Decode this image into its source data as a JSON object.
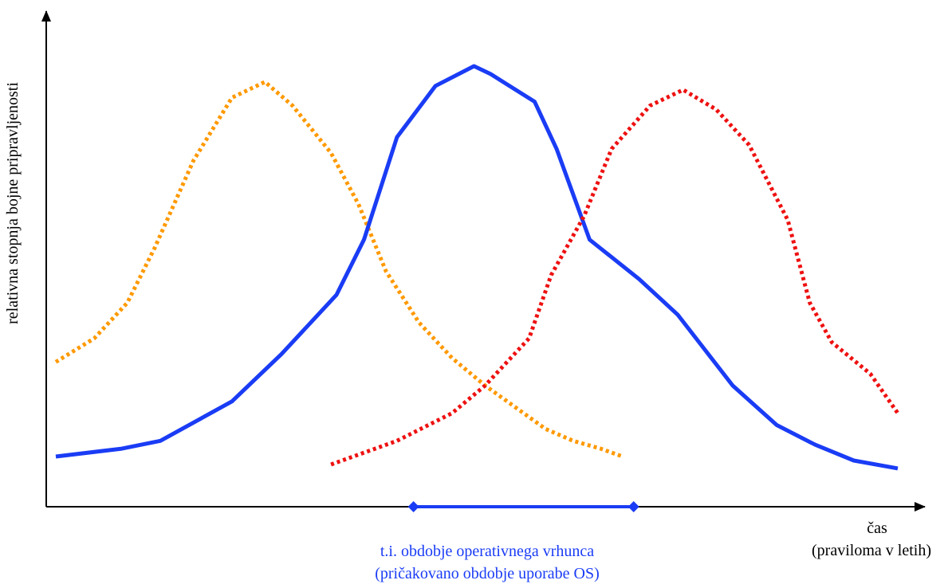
{
  "axes": {
    "ylabel": "relativna stopnja bojne pripravljenosti",
    "xlabel_line1": "čas",
    "xlabel_line2": "(praviloma v letih)"
  },
  "peak_period": {
    "label_line1": "t.i. obdobje operativnega vrhunca",
    "label_line2": "(pričakovano obdobje uporabe OS)",
    "color": "#1a3cf5"
  },
  "chart_data": {
    "type": "line",
    "series": [
      {
        "style": "dotted",
        "color": "#ff9900",
        "x": [
          0,
          0.7,
          1.3,
          1.8,
          2.5,
          3.2,
          3.8,
          4.3,
          5.0,
          5.5,
          6.0,
          6.6,
          7.2,
          7.8,
          8.4,
          8.9,
          9.4,
          9.9,
          10.3
        ],
        "y": [
          25,
          31,
          40,
          54,
          76,
          92,
          96,
          90,
          78,
          65,
          48,
          35,
          26,
          19,
          13,
          8,
          5,
          3,
          1
        ]
      },
      {
        "style": "solid",
        "color": "#1a3cf5",
        "x": [
          0,
          1.2,
          1.9,
          3.2,
          4.1,
          5.1,
          5.6,
          6.2,
          6.9,
          7.6,
          7.9,
          8.7,
          9.1,
          9.7,
          10.6,
          11.3,
          11.8,
          12.3,
          13.1,
          13.8,
          14.5,
          15.3
        ],
        "y": [
          1,
          3,
          5,
          15,
          27,
          42,
          56,
          82,
          95,
          100,
          98,
          91,
          79,
          56,
          46,
          37,
          28,
          19,
          9,
          4,
          0,
          -2
        ]
      },
      {
        "style": "dotted",
        "color": "#ee1111",
        "x": [
          5.0,
          6.2,
          7.2,
          7.8,
          8.6,
          9.0,
          9.6,
          10.1,
          10.8,
          11.4,
          12.0,
          12.6,
          13.3,
          13.7,
          14.1,
          14.8,
          15.3
        ],
        "y": [
          -1,
          5,
          12,
          19,
          31,
          47,
          62,
          79,
          90,
          94,
          89,
          80,
          61,
          40,
          30,
          22,
          12
        ]
      }
    ],
    "peak_interval": [
      6.5,
      10.5
    ]
  }
}
